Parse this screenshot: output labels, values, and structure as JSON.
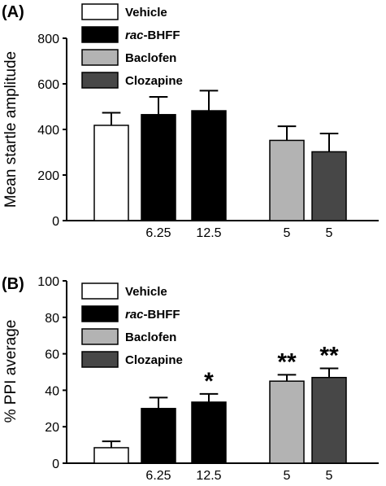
{
  "colors": {
    "Vehicle": "#ffffff",
    "rac-BHFF": "#000000",
    "Baclofen": "#b3b3b3",
    "Clozapine": "#474747"
  },
  "chart_data": [
    {
      "type": "bar",
      "panel": "(A)",
      "ylabel": "Mean startle amplitude",
      "ylim": [
        0,
        800
      ],
      "yticks": [
        0,
        200,
        400,
        600,
        800
      ],
      "categories": [
        "",
        "6.25",
        "12.5",
        "5",
        "5"
      ],
      "series_of_bar": [
        "Vehicle",
        "rac-BHFF",
        "rac-BHFF",
        "Baclofen",
        "Clozapine"
      ],
      "values": [
        418,
        465,
        482,
        352,
        302
      ],
      "errors": [
        55,
        78,
        88,
        62,
        80
      ],
      "significance": [
        "",
        "",
        "",
        "",
        ""
      ],
      "legend": {
        "position": "top-left",
        "items": [
          {
            "prefix": "",
            "italic": "",
            "suffix": "Vehicle",
            "series": "Vehicle"
          },
          {
            "prefix": "",
            "italic": "rac",
            "suffix": "-BHFF",
            "series": "rac-BHFF"
          },
          {
            "prefix": "",
            "italic": "",
            "suffix": "Baclofen",
            "series": "Baclofen"
          },
          {
            "prefix": "",
            "italic": "",
            "suffix": "Clozapine",
            "series": "Clozapine"
          }
        ]
      }
    },
    {
      "type": "bar",
      "panel": "(B)",
      "ylabel": "% PPI average",
      "ylim": [
        0,
        100
      ],
      "yticks": [
        0,
        20,
        40,
        60,
        80,
        100
      ],
      "categories": [
        "",
        "6.25",
        "12.5",
        "5",
        "5"
      ],
      "series_of_bar": [
        "Vehicle",
        "rac-BHFF",
        "rac-BHFF",
        "Baclofen",
        "Clozapine"
      ],
      "values": [
        8.5,
        30,
        33.5,
        45,
        47
      ],
      "errors": [
        3.5,
        6,
        4.5,
        3.5,
        5
      ],
      "significance": [
        "",
        "",
        "*",
        "**",
        "**"
      ],
      "legend": {
        "position": "top-left",
        "items": [
          {
            "prefix": "",
            "italic": "",
            "suffix": "Vehicle",
            "series": "Vehicle"
          },
          {
            "prefix": "",
            "italic": "rac",
            "suffix": "-BHFF",
            "series": "rac-BHFF"
          },
          {
            "prefix": "",
            "italic": "",
            "suffix": "Baclofen",
            "series": "Baclofen"
          },
          {
            "prefix": "",
            "italic": "",
            "suffix": "Clozapine",
            "series": "Clozapine"
          }
        ]
      }
    }
  ]
}
